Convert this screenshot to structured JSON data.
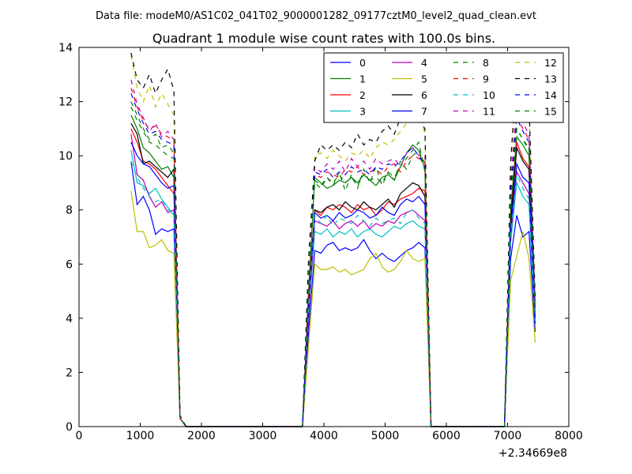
{
  "figure": {
    "suptitle": "Data file: modeM0/AS1C02_041T02_9000001282_09177cztM0_level2_quad_clean.evt"
  },
  "chart_data": {
    "type": "line",
    "title": "Quadrant 1 module wise count rates with 100.0s bins.",
    "xlabel": "",
    "ylabel": "",
    "x_offset_label": "+2.34669e8",
    "xlim": [
      0,
      8000
    ],
    "ylim": [
      0,
      14
    ],
    "xticks": [
      "0",
      "1000",
      "2000",
      "3000",
      "4000",
      "5000",
      "6000",
      "7000",
      "8000"
    ],
    "yticks": [
      "0",
      "2",
      "4",
      "6",
      "8",
      "10",
      "12",
      "14"
    ],
    "grid": false,
    "legend": {
      "position": "top-right",
      "columns": 4
    },
    "segments": [
      {
        "x": [
          850,
          950,
          1050,
          1150,
          1250,
          1350,
          1450,
          1550,
          1650,
          1750,
          1850,
          3650
        ]
      },
      {
        "x": [
          3650,
          3750,
          3850,
          3950,
          4050,
          4150,
          4250,
          4350,
          4450,
          4550,
          4650,
          4750,
          4850,
          4950,
          5050,
          5150,
          5250,
          5350,
          5450,
          5550,
          5650,
          5750,
          5850,
          6950
        ]
      },
      {
        "x": [
          6950,
          7050,
          7150,
          7250,
          7350,
          7450
        ]
      }
    ],
    "series": [
      {
        "name": "0",
        "color": "#0000ff",
        "dash": "solid",
        "values": [
          [
            9.8,
            8.2,
            8.5,
            8.0,
            7.1,
            7.3,
            7.2,
            7.3,
            0.3,
            0.0,
            0.0,
            0.0
          ],
          [
            0.0,
            3.5,
            6.5,
            6.4,
            6.7,
            6.8,
            6.5,
            6.6,
            6.5,
            6.6,
            6.9,
            6.5,
            6.2,
            6.4,
            6.2,
            6.1,
            6.3,
            6.5,
            6.6,
            6.8,
            6.6,
            0.0,
            0.0,
            0.0
          ],
          [
            0.0,
            6.2,
            7.8,
            7.0,
            7.2,
            3.5
          ]
        ]
      },
      {
        "name": "1",
        "color": "#008000",
        "dash": "solid",
        "values": [
          [
            11.5,
            11.0,
            10.3,
            10.1,
            9.8,
            9.5,
            9.6,
            9.2,
            0.3,
            0.0,
            0.0,
            0.0
          ],
          [
            0.0,
            5.0,
            9.2,
            9.0,
            8.8,
            8.9,
            9.1,
            9.0,
            9.2,
            9.0,
            9.3,
            9.1,
            8.9,
            9.2,
            9.3,
            9.1,
            9.6,
            10.1,
            10.4,
            10.2,
            9.5,
            0.0,
            0.0,
            0.0
          ],
          [
            0.0,
            8.0,
            10.7,
            10.4,
            10.0,
            4.2
          ]
        ]
      },
      {
        "name": "2",
        "color": "#ff0000",
        "dash": "solid",
        "values": [
          [
            11.0,
            10.5,
            9.8,
            9.7,
            9.5,
            9.2,
            8.9,
            8.6,
            0.3,
            0.0,
            0.0,
            0.0
          ],
          [
            0.0,
            4.8,
            8.0,
            7.8,
            8.1,
            8.0,
            8.2,
            8.1,
            7.9,
            8.2,
            8.0,
            8.1,
            7.8,
            8.0,
            8.3,
            8.2,
            8.4,
            8.5,
            8.6,
            8.8,
            8.7,
            0.0,
            0.0,
            0.0
          ],
          [
            0.0,
            7.6,
            10.5,
            9.9,
            9.6,
            4.0
          ]
        ]
      },
      {
        "name": "3",
        "color": "#00bfbf",
        "dash": "solid",
        "values": [
          [
            10.2,
            9.0,
            8.9,
            8.6,
            8.8,
            8.4,
            8.1,
            7.8,
            0.3,
            0.0,
            0.0,
            0.0
          ],
          [
            0.0,
            4.2,
            7.2,
            7.1,
            7.3,
            7.0,
            7.2,
            7.1,
            7.3,
            7.0,
            7.2,
            7.3,
            7.1,
            7.0,
            7.2,
            7.4,
            7.3,
            7.5,
            7.6,
            7.4,
            7.3,
            0.0,
            0.0,
            0.0
          ],
          [
            0.0,
            6.8,
            9.0,
            8.5,
            8.2,
            3.8
          ]
        ]
      },
      {
        "name": "4",
        "color": "#bf00bf",
        "dash": "solid",
        "values": [
          [
            10.8,
            9.3,
            9.1,
            8.5,
            8.1,
            8.3,
            7.9,
            8.0,
            0.3,
            0.0,
            0.0,
            0.0
          ],
          [
            0.0,
            4.0,
            7.6,
            7.5,
            7.4,
            7.6,
            7.3,
            7.5,
            7.6,
            7.4,
            7.6,
            7.3,
            7.5,
            7.4,
            7.6,
            7.5,
            7.8,
            7.9,
            8.0,
            7.8,
            7.6,
            0.0,
            0.0,
            0.0
          ],
          [
            0.0,
            7.0,
            9.4,
            9.0,
            8.6,
            3.9
          ]
        ]
      },
      {
        "name": "5",
        "color": "#bfbf00",
        "dash": "solid",
        "values": [
          [
            8.7,
            7.2,
            7.2,
            6.6,
            6.7,
            6.9,
            6.5,
            6.4,
            0.3,
            0.0,
            0.0,
            0.0
          ],
          [
            0.0,
            3.0,
            6.0,
            5.8,
            5.8,
            5.9,
            5.7,
            5.8,
            5.6,
            5.7,
            5.8,
            6.2,
            6.4,
            5.9,
            5.7,
            5.8,
            6.1,
            6.5,
            6.2,
            6.1,
            6.2,
            0.0,
            0.0,
            0.0
          ],
          [
            0.0,
            5.4,
            6.3,
            7.2,
            6.2,
            3.1
          ]
        ]
      },
      {
        "name": "6",
        "color": "#000000",
        "dash": "solid",
        "values": [
          [
            11.2,
            10.8,
            9.7,
            9.8,
            9.6,
            9.4,
            9.2,
            9.5,
            0.3,
            0.0,
            0.0,
            0.0
          ],
          [
            0.0,
            4.5,
            8.0,
            7.9,
            8.1,
            8.2,
            8.0,
            8.3,
            8.1,
            8.0,
            8.3,
            8.1,
            8.0,
            8.2,
            8.4,
            8.1,
            8.6,
            8.8,
            9.0,
            8.9,
            8.5,
            0.0,
            0.0,
            0.0
          ],
          [
            0.0,
            7.5,
            10.3,
            9.8,
            9.5,
            3.9
          ]
        ]
      },
      {
        "name": "7",
        "color": "#0000ff",
        "dash": "solid",
        "values": [
          [
            10.5,
            10.0,
            9.7,
            9.6,
            9.3,
            9.0,
            8.8,
            8.9,
            0.3,
            0.0,
            0.0,
            0.0
          ],
          [
            0.0,
            4.3,
            7.9,
            7.7,
            7.8,
            7.6,
            7.9,
            7.7,
            7.8,
            8.0,
            7.9,
            7.7,
            7.8,
            8.1,
            7.9,
            7.8,
            8.2,
            8.4,
            8.3,
            8.5,
            8.2,
            0.0,
            0.0,
            0.0
          ],
          [
            0.0,
            7.3,
            9.7,
            9.2,
            9.0,
            3.8
          ]
        ]
      },
      {
        "name": "8",
        "color": "#008000",
        "dash": "dashed",
        "values": [
          [
            12.0,
            11.5,
            11.0,
            10.6,
            10.8,
            10.3,
            10.4,
            10.1,
            0.3,
            0.0,
            0.0,
            0.0
          ],
          [
            0.0,
            5.2,
            9.0,
            8.8,
            9.2,
            8.9,
            9.4,
            8.7,
            9.3,
            8.8,
            9.5,
            9.0,
            9.6,
            8.9,
            9.4,
            9.1,
            9.8,
            9.5,
            10.0,
            10.2,
            9.7,
            0.0,
            0.0,
            0.0
          ],
          [
            0.0,
            8.5,
            11.0,
            10.6,
            10.3,
            4.3
          ]
        ]
      },
      {
        "name": "9",
        "color": "#ff0000",
        "dash": "dashed",
        "values": [
          [
            12.5,
            11.8,
            11.3,
            11.0,
            11.1,
            10.8,
            10.7,
            10.5,
            0.3,
            0.0,
            0.0,
            0.0
          ],
          [
            0.0,
            5.3,
            9.3,
            9.2,
            9.4,
            9.3,
            9.2,
            9.5,
            9.4,
            9.6,
            9.3,
            9.4,
            9.5,
            9.3,
            9.6,
            9.7,
            9.4,
            9.8,
            10.0,
            9.9,
            9.8,
            0.0,
            0.0,
            0.0
          ],
          [
            0.0,
            8.8,
            11.5,
            11.0,
            10.6,
            4.4
          ]
        ]
      },
      {
        "name": "10",
        "color": "#00bfbf",
        "dash": "dashed",
        "values": [
          [
            9.8,
            9.2,
            8.8,
            8.5,
            8.3,
            8.4,
            8.0,
            7.9,
            0.3,
            0.0,
            0.0,
            0.0
          ],
          [
            0.0,
            4.4,
            7.8,
            7.5,
            7.8,
            7.4,
            7.7,
            7.6,
            7.5,
            7.8,
            7.6,
            7.4,
            7.7,
            7.5,
            7.6,
            7.7,
            7.5,
            7.9,
            8.0,
            7.7,
            7.5,
            0.0,
            0.0,
            0.0
          ],
          [
            0.0,
            7.1,
            9.3,
            8.8,
            8.4,
            3.9
          ]
        ]
      },
      {
        "name": "11",
        "color": "#bf00bf",
        "dash": "dashed",
        "values": [
          [
            12.8,
            11.9,
            11.4,
            10.9,
            11.2,
            10.7,
            10.9,
            10.6,
            0.3,
            0.0,
            0.0,
            0.0
          ],
          [
            0.0,
            5.5,
            9.6,
            9.4,
            9.7,
            9.5,
            9.8,
            9.4,
            9.9,
            9.6,
            9.8,
            9.5,
            9.9,
            9.7,
            9.8,
            9.9,
            9.6,
            10.1,
            10.3,
            10.0,
            10.0,
            0.0,
            0.0,
            0.0
          ],
          [
            0.0,
            9.0,
            11.8,
            11.2,
            10.8,
            4.5
          ]
        ]
      },
      {
        "name": "12",
        "color": "#bfbf00",
        "dash": "dashed",
        "values": [
          [
            13.7,
            12.5,
            12.0,
            12.6,
            11.8,
            12.3,
            11.9,
            11.5,
            0.4,
            0.0,
            0.0,
            0.0
          ],
          [
            0.0,
            5.8,
            10.0,
            10.1,
            9.9,
            10.2,
            10.0,
            9.8,
            10.1,
            10.0,
            10.2,
            9.9,
            10.3,
            10.5,
            10.4,
            10.6,
            10.9,
            11.2,
            11.5,
            11.8,
            10.8,
            0.0,
            0.0,
            0.0
          ],
          [
            0.0,
            9.5,
            12.8,
            12.3,
            11.6,
            4.7
          ]
        ]
      },
      {
        "name": "13",
        "color": "#000000",
        "dash": "dashed",
        "values": [
          [
            13.8,
            12.8,
            12.5,
            13.0,
            12.3,
            12.8,
            13.2,
            12.4,
            0.4,
            0.0,
            0.0,
            0.0
          ],
          [
            0.0,
            6.2,
            9.8,
            10.4,
            10.2,
            10.4,
            10.2,
            10.5,
            10.3,
            10.8,
            10.4,
            10.6,
            10.5,
            10.9,
            11.1,
            10.8,
            11.4,
            11.2,
            11.6,
            11.3,
            11.0,
            0.0,
            0.0,
            0.0
          ],
          [
            0.0,
            9.8,
            13.1,
            12.4,
            12.0,
            4.8
          ]
        ]
      },
      {
        "name": "14",
        "color": "#0000ff",
        "dash": "dashed",
        "values": [
          [
            12.3,
            11.7,
            11.2,
            10.8,
            10.9,
            10.6,
            10.5,
            10.4,
            0.3,
            0.0,
            0.0,
            0.0
          ],
          [
            0.0,
            5.1,
            9.4,
            9.3,
            9.5,
            9.2,
            9.4,
            9.3,
            9.6,
            9.4,
            9.5,
            9.3,
            9.6,
            9.5,
            9.7,
            9.6,
            9.8,
            10.1,
            10.3,
            10.0,
            9.6,
            0.0,
            0.0,
            0.0
          ],
          [
            0.0,
            8.7,
            11.4,
            10.9,
            10.5,
            4.4
          ]
        ]
      },
      {
        "name": "15",
        "color": "#008000",
        "dash": "dashed",
        "values": [
          [
            11.8,
            11.3,
            10.9,
            10.5,
            10.4,
            10.2,
            10.0,
            9.9,
            0.3,
            0.0,
            0.0,
            0.0
          ],
          [
            0.0,
            5.0,
            9.1,
            8.9,
            9.2,
            9.0,
            9.3,
            9.0,
            9.2,
            8.9,
            9.3,
            9.1,
            9.2,
            9.0,
            9.4,
            9.2,
            9.6,
            9.9,
            10.2,
            10.5,
            9.4,
            0.0,
            0.0,
            0.0
          ],
          [
            0.0,
            8.4,
            11.0,
            10.6,
            10.2,
            4.2
          ]
        ]
      }
    ]
  }
}
